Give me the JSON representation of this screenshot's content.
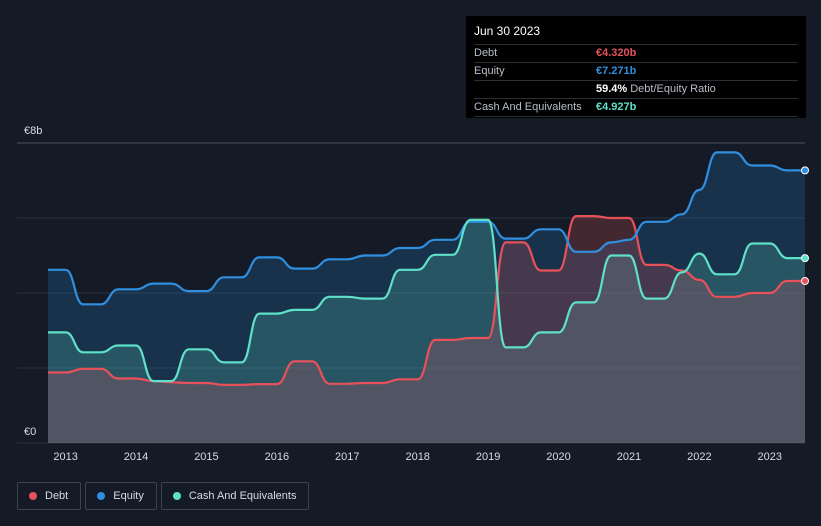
{
  "tooltip": {
    "date": "Jun 30 2023",
    "debt_label": "Debt",
    "debt_value": "€4.320b",
    "equity_label": "Equity",
    "equity_value": "€7.271b",
    "ratio_value": "59.4%",
    "ratio_label": "Debt/Equity Ratio",
    "cash_label": "Cash And Equivalents",
    "cash_value": "€4.927b"
  },
  "legend": [
    {
      "label": "Debt",
      "color": "#e8515a"
    },
    {
      "label": "Equity",
      "color": "#2f8fe0"
    },
    {
      "label": "Cash And Equivalents",
      "color": "#5fe0c8"
    }
  ],
  "chart_data": {
    "type": "area",
    "x_unit": "year",
    "y_unit": "€b",
    "ylim": [
      0,
      8
    ],
    "x_range": [
      2012.75,
      2023.5
    ],
    "y_tick_labels": [
      {
        "value": 8,
        "label": "€8b"
      },
      {
        "value": 0,
        "label": "€0"
      }
    ],
    "x_ticks": [
      2013,
      2014,
      2015,
      2016,
      2017,
      2018,
      2019,
      2020,
      2021,
      2022,
      2023
    ],
    "grid": true,
    "legend_position": "bottom-left",
    "series": [
      {
        "name": "Debt",
        "color": "#e8515a",
        "points": [
          [
            2012.75,
            1.88
          ],
          [
            2013.0,
            1.88
          ],
          [
            2013.25,
            1.98
          ],
          [
            2013.5,
            1.98
          ],
          [
            2013.75,
            1.72
          ],
          [
            2014.0,
            1.72
          ],
          [
            2014.25,
            1.65
          ],
          [
            2014.5,
            1.62
          ],
          [
            2014.75,
            1.6
          ],
          [
            2015.0,
            1.6
          ],
          [
            2015.25,
            1.55
          ],
          [
            2015.5,
            1.55
          ],
          [
            2015.75,
            1.57
          ],
          [
            2016.0,
            1.57
          ],
          [
            2016.25,
            2.18
          ],
          [
            2016.5,
            2.18
          ],
          [
            2016.75,
            1.58
          ],
          [
            2017.0,
            1.58
          ],
          [
            2017.25,
            1.6
          ],
          [
            2017.5,
            1.6
          ],
          [
            2017.75,
            1.7
          ],
          [
            2018.0,
            1.7
          ],
          [
            2018.25,
            2.75
          ],
          [
            2018.5,
            2.75
          ],
          [
            2018.75,
            2.8
          ],
          [
            2019.0,
            2.8
          ],
          [
            2019.25,
            5.35
          ],
          [
            2019.5,
            5.35
          ],
          [
            2019.75,
            4.6
          ],
          [
            2020.0,
            4.6
          ],
          [
            2020.25,
            6.05
          ],
          [
            2020.5,
            6.05
          ],
          [
            2020.75,
            6.0
          ],
          [
            2021.0,
            6.0
          ],
          [
            2021.25,
            4.75
          ],
          [
            2021.5,
            4.75
          ],
          [
            2021.75,
            4.6
          ],
          [
            2022.0,
            4.35
          ],
          [
            2022.25,
            3.9
          ],
          [
            2022.5,
            3.9
          ],
          [
            2022.75,
            4.0
          ],
          [
            2023.0,
            4.0
          ],
          [
            2023.25,
            4.32
          ],
          [
            2023.5,
            4.32
          ]
        ]
      },
      {
        "name": "Equity",
        "color": "#2f8fe0",
        "points": [
          [
            2012.75,
            4.62
          ],
          [
            2013.0,
            4.62
          ],
          [
            2013.25,
            3.7
          ],
          [
            2013.5,
            3.7
          ],
          [
            2013.75,
            4.1
          ],
          [
            2014.0,
            4.1
          ],
          [
            2014.25,
            4.25
          ],
          [
            2014.5,
            4.25
          ],
          [
            2014.75,
            4.05
          ],
          [
            2015.0,
            4.05
          ],
          [
            2015.25,
            4.42
          ],
          [
            2015.5,
            4.42
          ],
          [
            2015.75,
            4.95
          ],
          [
            2016.0,
            4.95
          ],
          [
            2016.25,
            4.65
          ],
          [
            2016.5,
            4.65
          ],
          [
            2016.75,
            4.9
          ],
          [
            2017.0,
            4.9
          ],
          [
            2017.25,
            5.0
          ],
          [
            2017.5,
            5.0
          ],
          [
            2017.75,
            5.2
          ],
          [
            2018.0,
            5.2
          ],
          [
            2018.25,
            5.42
          ],
          [
            2018.5,
            5.42
          ],
          [
            2018.75,
            5.9
          ],
          [
            2019.0,
            5.9
          ],
          [
            2019.25,
            5.45
          ],
          [
            2019.5,
            5.45
          ],
          [
            2019.75,
            5.7
          ],
          [
            2020.0,
            5.7
          ],
          [
            2020.25,
            5.1
          ],
          [
            2020.5,
            5.1
          ],
          [
            2020.75,
            5.35
          ],
          [
            2021.0,
            5.42
          ],
          [
            2021.25,
            5.9
          ],
          [
            2021.5,
            5.9
          ],
          [
            2021.75,
            6.1
          ],
          [
            2022.0,
            6.75
          ],
          [
            2022.25,
            7.75
          ],
          [
            2022.5,
            7.75
          ],
          [
            2022.75,
            7.4
          ],
          [
            2023.0,
            7.4
          ],
          [
            2023.25,
            7.27
          ],
          [
            2023.5,
            7.27
          ]
        ]
      },
      {
        "name": "Cash And Equivalents",
        "color": "#5fe0c8",
        "points": [
          [
            2012.75,
            2.95
          ],
          [
            2013.0,
            2.95
          ],
          [
            2013.25,
            2.42
          ],
          [
            2013.5,
            2.42
          ],
          [
            2013.75,
            2.6
          ],
          [
            2014.0,
            2.6
          ],
          [
            2014.25,
            1.65
          ],
          [
            2014.5,
            1.65
          ],
          [
            2014.75,
            2.5
          ],
          [
            2015.0,
            2.5
          ],
          [
            2015.25,
            2.15
          ],
          [
            2015.5,
            2.15
          ],
          [
            2015.75,
            3.45
          ],
          [
            2016.0,
            3.45
          ],
          [
            2016.25,
            3.55
          ],
          [
            2016.5,
            3.55
          ],
          [
            2016.75,
            3.9
          ],
          [
            2017.0,
            3.9
          ],
          [
            2017.25,
            3.85
          ],
          [
            2017.5,
            3.85
          ],
          [
            2017.75,
            4.62
          ],
          [
            2018.0,
            4.62
          ],
          [
            2018.25,
            5.02
          ],
          [
            2018.5,
            5.02
          ],
          [
            2018.75,
            5.95
          ],
          [
            2019.0,
            5.95
          ],
          [
            2019.25,
            2.55
          ],
          [
            2019.5,
            2.55
          ],
          [
            2019.75,
            2.95
          ],
          [
            2020.0,
            2.95
          ],
          [
            2020.25,
            3.75
          ],
          [
            2020.5,
            3.75
          ],
          [
            2020.75,
            5.0
          ],
          [
            2021.0,
            5.0
          ],
          [
            2021.25,
            3.85
          ],
          [
            2021.5,
            3.85
          ],
          [
            2021.75,
            4.55
          ],
          [
            2022.0,
            5.05
          ],
          [
            2022.25,
            4.5
          ],
          [
            2022.5,
            4.5
          ],
          [
            2022.75,
            5.32
          ],
          [
            2023.0,
            5.32
          ],
          [
            2023.25,
            4.93
          ],
          [
            2023.5,
            4.93
          ]
        ]
      }
    ]
  }
}
